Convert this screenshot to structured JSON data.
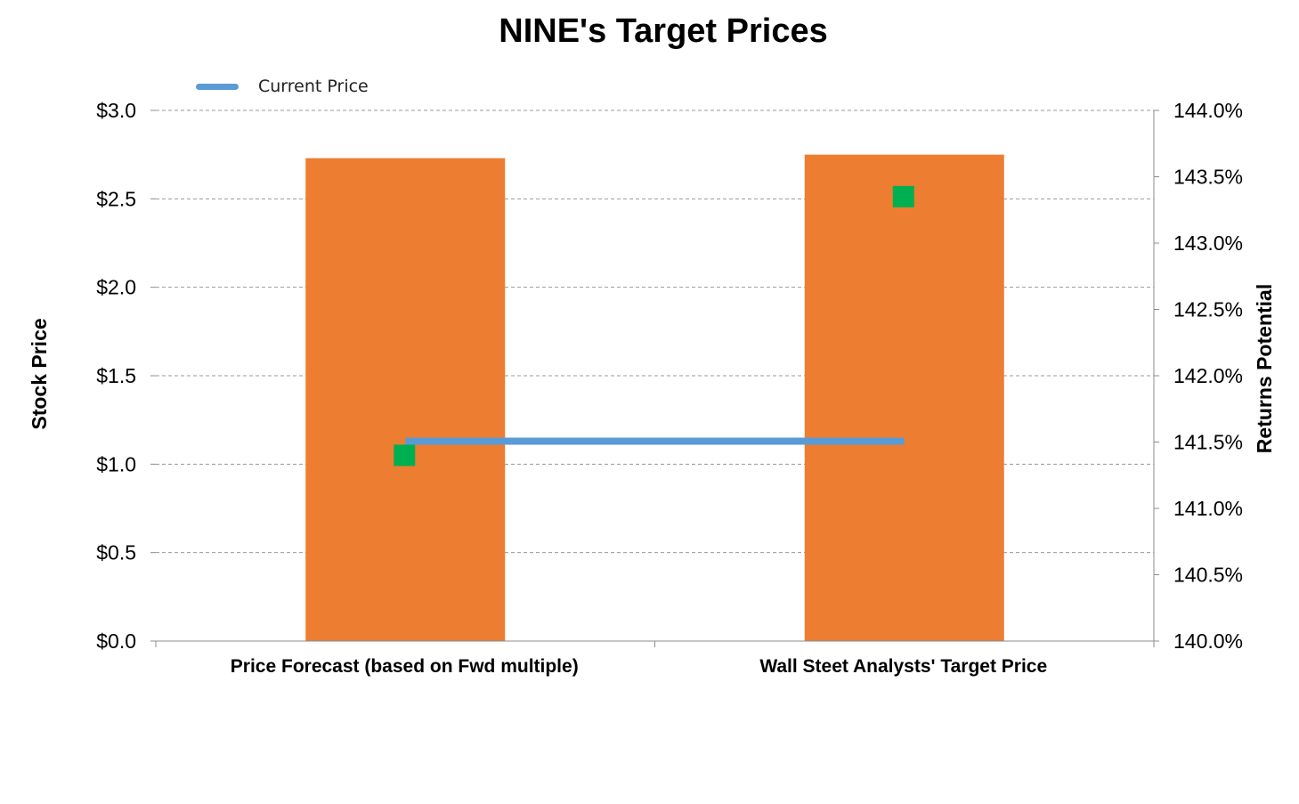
{
  "chart_data": {
    "type": "bar",
    "title": "NINE's Target Prices",
    "categories": [
      "Price Forecast (based on Fwd multiple)",
      "Wall Steet Analysts' Target Price"
    ],
    "ylabel": "Stock Price",
    "y2label": "Returns Potential",
    "ylim": [
      0,
      3.0
    ],
    "y2lim": [
      140.0,
      144.0
    ],
    "yticks": [
      "$0.0",
      "$0.5",
      "$1.0",
      "$1.5",
      "$2.0",
      "$2.5",
      "$3.0"
    ],
    "y2ticks": [
      "140.0%",
      "140.5%",
      "141.0%",
      "141.5%",
      "142.0%",
      "142.5%",
      "143.0%",
      "143.5%",
      "144.0%"
    ],
    "grid": true,
    "legend_position": "top-left",
    "series": [
      {
        "kind": "bar",
        "axis": "left",
        "values": [
          2.73,
          2.75
        ],
        "color": "#ED7D31"
      },
      {
        "kind": "line",
        "axis": "left",
        "name": "Current Price",
        "values": [
          1.13,
          1.13
        ],
        "color": "#5B9BD5"
      },
      {
        "kind": "scatter",
        "axis": "right",
        "values": [
          141.4,
          143.35
        ],
        "color": "#00B050"
      }
    ]
  }
}
